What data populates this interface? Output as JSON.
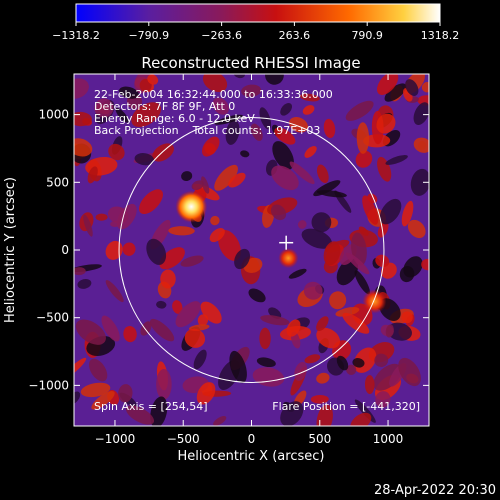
{
  "chart_data": {
    "type": "heatmap",
    "title": "Reconstructed RHESSI Image",
    "xlabel": "Heliocentric X (arcsec)",
    "ylabel": "Heliocentric Y (arcsec)",
    "xlim": [
      -1300,
      1300
    ],
    "ylim": [
      -1300,
      1300
    ],
    "xticks": [
      -1000,
      -500,
      0,
      500,
      1000
    ],
    "yticks": [
      -1000,
      -500,
      0,
      500,
      1000
    ],
    "xtick_labels": [
      "−1000",
      "−500",
      "0",
      "500",
      "1000"
    ],
    "ytick_labels": [
      "−1000",
      "−500",
      "0",
      "500",
      "1000"
    ],
    "colorbar": {
      "min": -1318.2,
      "max": 1318.2,
      "tick_values": [
        -1318.2,
        -790.9,
        -263.6,
        263.6,
        790.9,
        1318.2
      ],
      "tick_labels": [
        "−1318.2",
        "−790.9",
        "−263.6",
        "263.6",
        "790.9",
        "1318.2"
      ],
      "colors": [
        "#0000ff",
        "#5a1ea0",
        "#8a1a5a",
        "#c81010",
        "#ff6a00",
        "#ffd040",
        "#ffffff"
      ]
    },
    "solar_disk": {
      "center": [
        0,
        0
      ],
      "radius": 970
    },
    "marker": {
      "type": "cross",
      "x": 254,
      "y": 54
    },
    "bright_sources": [
      {
        "x": -441,
        "y": 320,
        "intensity": 1318
      },
      {
        "x": 270,
        "y": -60,
        "intensity": 820
      },
      {
        "x": 900,
        "y": -380,
        "intensity": 650
      }
    ],
    "annotations": [
      "22-Feb-2004 16:32:44.000 to 16:33:36.000",
      "Detectors: 7F 8F 9F, Att 0",
      "Energy Range: 6.0 - 12.0 keV",
      "Back Projection    Total counts: 1.97E+03"
    ],
    "spin_axis": "Spin Axis = [254,54]",
    "flare_position": "Flare Position = [-441,320]",
    "timestamp": "28-Apr-2022 20:30"
  }
}
